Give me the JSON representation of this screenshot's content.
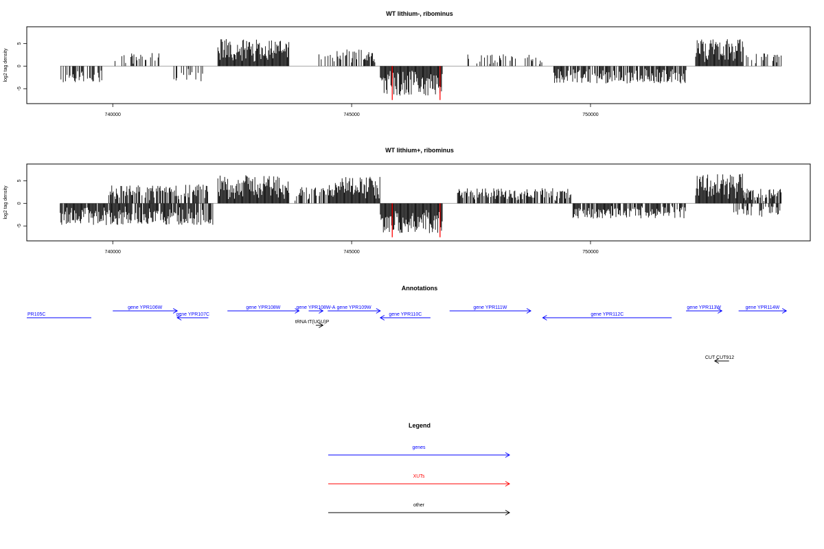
{
  "chart_data": [
    {
      "type": "bar",
      "title": "WT lithium-, ribominus",
      "xlabel": "",
      "ylabel": "log2 tag density",
      "xlim": [
        738200,
        754600
      ],
      "ylim": [
        -8.3,
        8.7
      ],
      "xticks": [
        740000,
        745000,
        750000
      ],
      "yticks": [
        -5,
        0,
        5
      ],
      "segments": [
        {
          "from": 738900,
          "to": 739800,
          "sign": -1,
          "amp": 3.2,
          "density": 0.5
        },
        {
          "from": 740000,
          "to": 741000,
          "sign": 1,
          "amp": 2.5,
          "density": 0.35
        },
        {
          "from": 741200,
          "to": 742000,
          "sign": -1,
          "amp": 2.8,
          "density": 0.4
        },
        {
          "from": 742200,
          "to": 743700,
          "sign": 1,
          "amp": 5.0,
          "density": 1.0
        },
        {
          "from": 744300,
          "to": 745500,
          "sign": 1,
          "amp": 3.2,
          "density": 0.55
        },
        {
          "from": 745600,
          "to": 746900,
          "sign": -1,
          "amp": 5.5,
          "density": 1.0
        },
        {
          "from": 747400,
          "to": 749000,
          "sign": 1,
          "amp": 2.2,
          "density": 0.3
        },
        {
          "from": 749200,
          "to": 752000,
          "sign": -1,
          "amp": 3.2,
          "density": 0.8
        },
        {
          "from": 752200,
          "to": 753200,
          "sign": 1,
          "amp": 5.0,
          "density": 1.0
        },
        {
          "from": 753200,
          "to": 754000,
          "sign": 1,
          "amp": 2.5,
          "density": 0.45
        }
      ],
      "red_markers": [
        {
          "x": 745850,
          "y": -7.5
        },
        {
          "x": 746850,
          "y": -7.5
        }
      ]
    },
    {
      "type": "bar",
      "title": "WT lithium+, ribominus",
      "xlabel": "",
      "ylabel": "log2 tag density",
      "xlim": [
        738200,
        754600
      ],
      "ylim": [
        -8.3,
        8.7
      ],
      "xticks": [
        740000,
        745000,
        750000
      ],
      "yticks": [
        -5,
        0,
        5
      ],
      "segments": [
        {
          "from": 738900,
          "to": 742100,
          "sign": -1,
          "amp": 4.0,
          "density": 0.9
        },
        {
          "from": 739900,
          "to": 742000,
          "sign": 1,
          "amp": 3.5,
          "density": 0.7
        },
        {
          "from": 742200,
          "to": 743700,
          "sign": 1,
          "amp": 5.2,
          "density": 1.0
        },
        {
          "from": 743800,
          "to": 744500,
          "sign": 1,
          "amp": 3.0,
          "density": 0.5
        },
        {
          "from": 744500,
          "to": 745600,
          "sign": 1,
          "amp": 5.0,
          "density": 1.0
        },
        {
          "from": 745600,
          "to": 746900,
          "sign": -1,
          "amp": 5.5,
          "density": 1.0
        },
        {
          "from": 747200,
          "to": 749600,
          "sign": 1,
          "amp": 2.8,
          "density": 0.75
        },
        {
          "from": 749600,
          "to": 752000,
          "sign": -1,
          "amp": 2.8,
          "density": 0.75
        },
        {
          "from": 752200,
          "to": 753200,
          "sign": 1,
          "amp": 5.5,
          "density": 1.0
        },
        {
          "from": 753200,
          "to": 754000,
          "sign": 1,
          "amp": 2.8,
          "density": 0.8
        },
        {
          "from": 753000,
          "to": 754000,
          "sign": -1,
          "amp": 2.5,
          "density": 0.4
        }
      ],
      "red_markers": [
        {
          "x": 745850,
          "y": -7.5
        },
        {
          "x": 746850,
          "y": -7.5
        }
      ]
    }
  ],
  "annotations": {
    "title": "Annotations",
    "features": [
      {
        "label": "PR105C",
        "from": 738200,
        "to": 739550,
        "row": 2,
        "dir": "none",
        "color": "#0000ff"
      },
      {
        "label": "gene YPR106W",
        "from": 740000,
        "to": 741350,
        "row": 1,
        "dir": "right",
        "color": "#0000ff"
      },
      {
        "label": "gene YPR107C",
        "from": 741350,
        "to": 742000,
        "row": 2,
        "dir": "left",
        "color": "#0000ff"
      },
      {
        "label": "gene YPR108W",
        "from": 742400,
        "to": 743900,
        "row": 1,
        "dir": "right",
        "color": "#0000ff"
      },
      {
        "label": "gene YPR108W-A",
        "from": 744100,
        "to": 744400,
        "row": 1,
        "dir": "right",
        "color": "#0000ff"
      },
      {
        "label": "gene YPR109W",
        "from": 744500,
        "to": 745600,
        "row": 1,
        "dir": "right",
        "color": "#0000ff"
      },
      {
        "label": "tRNA tT(UGU)P",
        "from": 744250,
        "to": 744400,
        "row": 3,
        "dir": "right",
        "color": "#000000"
      },
      {
        "label": "gene YPR110C",
        "from": 745600,
        "to": 746650,
        "row": 2,
        "dir": "left",
        "color": "#0000ff"
      },
      {
        "label": "gene YPR111W",
        "from": 747050,
        "to": 748750,
        "row": 1,
        "dir": "right",
        "color": "#0000ff"
      },
      {
        "label": "gene YPR112C",
        "from": 749000,
        "to": 751700,
        "row": 2,
        "dir": "left",
        "color": "#0000ff"
      },
      {
        "label": "gene YPR113W",
        "from": 752000,
        "to": 752750,
        "row": 1,
        "dir": "right",
        "color": "#0000ff"
      },
      {
        "label": "gene YPR114W",
        "from": 753100,
        "to": 754100,
        "row": 1,
        "dir": "right",
        "color": "#0000ff"
      },
      {
        "label": "CUT CUT912",
        "from": 752600,
        "to": 752900,
        "row": 4,
        "dir": "left",
        "color": "#000000"
      }
    ]
  },
  "legend": {
    "title": "Legend",
    "items": [
      {
        "label": "genes",
        "color": "#0000ff"
      },
      {
        "label": "XUTs",
        "color": "#ff0000"
      },
      {
        "label": "other",
        "color": "#000000"
      }
    ]
  }
}
